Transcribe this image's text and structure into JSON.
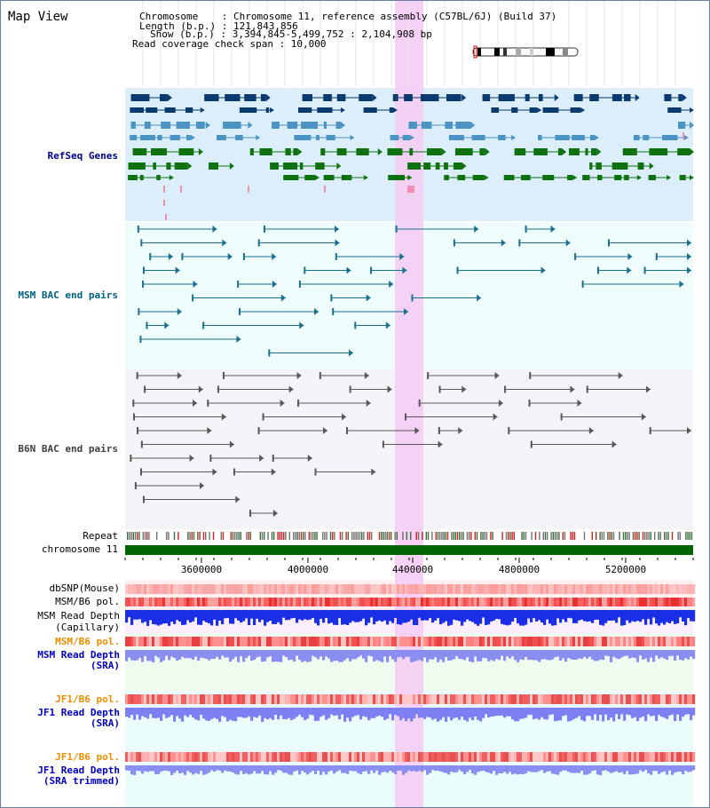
{
  "page_title": "Map View",
  "header": {
    "chromosome_label": "Chromosome    : Chromosome 11, reference assembly (C57BL/6J) (Build 37)",
    "length_label": "Length (b.p.) : 121,843,856",
    "show_label": "Show (b.p.) : 3,394,845-5,499,752 : 2,104,908 bp",
    "span_label": "Read coverage check span : 10,000"
  },
  "tracks": {
    "refseq_genes": "RefSeq Genes",
    "msm_bac": "MSM BAC end pairs",
    "b6n_bac": "B6N BAC end pairs",
    "repeat": "Repeat",
    "chromosome": "chromosome 11",
    "dbsnp": "dbSNP(Mouse)",
    "msm_b6_pol_1": "MSM/B6 pol.",
    "msm_read_depth_cap_1": "MSM Read Depth",
    "msm_read_depth_cap_2": "(Capillary)",
    "msm_b6_pol_2": "MSM/B6 pol.",
    "msm_read_depth_sra_1": "MSM Read Depth",
    "msm_read_depth_sra_2": "(SRA)",
    "jf1_b6_pol_1": "JF1/B6 pol.",
    "jf1_read_depth_sra_1": "JF1 Read Depth",
    "jf1_read_depth_sra_2": "(SRA)",
    "jf1_b6_pol_2": "JF1/B6 pol.",
    "jf1_read_depth_trim_1": "JF1 Read Depth",
    "jf1_read_depth_trim_2": "(SRA trimmed)"
  },
  "axis_ticks": [
    "3600000",
    "4000000",
    "4400000",
    "4800000",
    "5200000"
  ],
  "colors": {
    "refseq_label": "#00008b",
    "msm_label": "#006080",
    "b6n_label": "#404040",
    "orange_label": "#f08c00",
    "blue_label": "#0000c0",
    "highlight": "#f4cdf4",
    "chromosome_bar": "#006400"
  }
}
